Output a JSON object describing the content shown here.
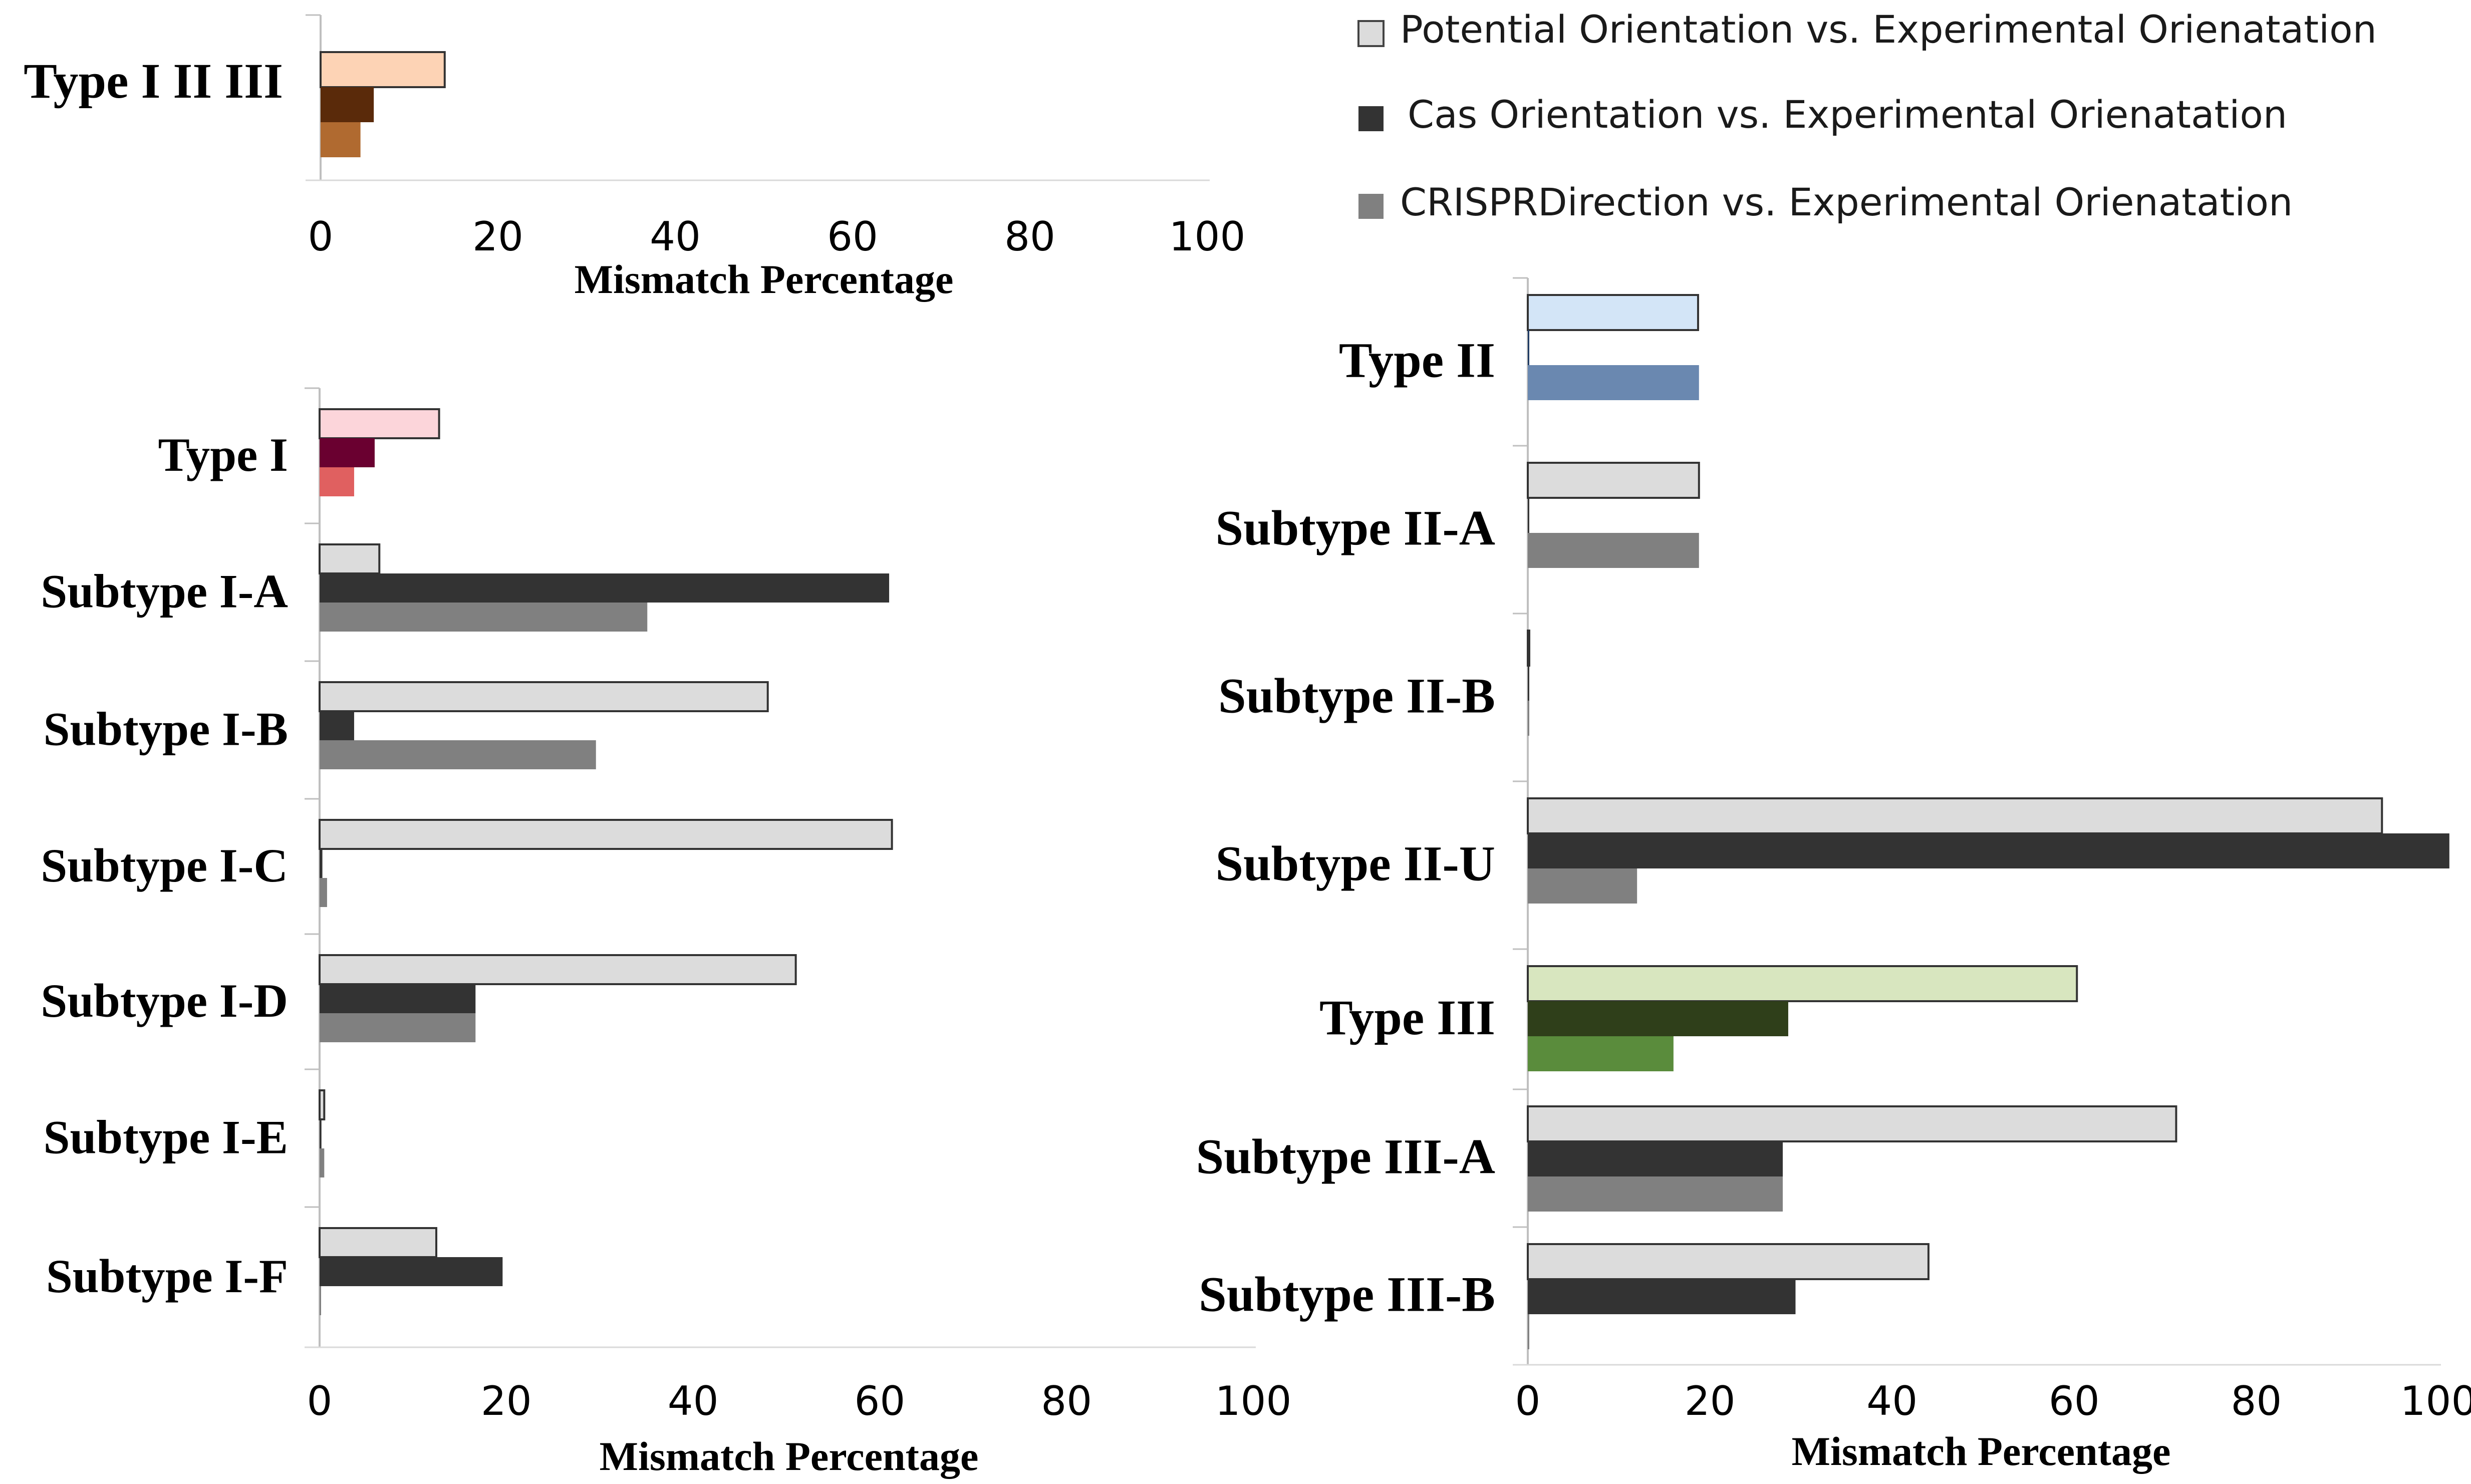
{
  "legend": [
    {
      "label": "Potential Orientation vs. Experimental Orienatation",
      "color": "#dcdcdc"
    },
    {
      "label": "Cas Orientation vs. Experimental Orienatation",
      "color": "#333333"
    },
    {
      "label": "CRISPRDirection vs. Experimental Orienatation",
      "color": "#808080"
    }
  ],
  "chart_data": [
    {
      "id": "top-left",
      "type": "bar",
      "orientation": "horizontal",
      "xlabel": "Mismatch Percentage",
      "xlim": [
        0,
        100
      ],
      "xticks": [
        0,
        20,
        40,
        60,
        80,
        100
      ],
      "categories": [
        "Type I II III"
      ],
      "series": [
        {
          "name": "Potential Orientation vs. Experimental Orienatation",
          "values": [
            14
          ]
        },
        {
          "name": "Cas Orientation vs. Experimental Orienatation",
          "values": [
            6
          ]
        },
        {
          "name": "CRISPRDirection vs. Experimental Orienatation",
          "values": [
            4.5
          ]
        }
      ],
      "colors": [
        [
          "#fdd3b5",
          "#5a2a0a",
          "#b06a30"
        ]
      ]
    },
    {
      "id": "bottom-left",
      "type": "bar",
      "orientation": "horizontal",
      "xlabel": "Mismatch Percentage",
      "xlim": [
        0,
        100
      ],
      "xticks": [
        0,
        20,
        40,
        60,
        80,
        100
      ],
      "categories": [
        "Type I",
        "Subtype I-A",
        "Subtype I-B",
        "Subtype I-C",
        "Subtype I-D",
        "Subtype I-E",
        "Subtype I-F"
      ],
      "series": [
        {
          "name": "Potential Orientation vs. Experimental Orienatation",
          "values": [
            12.8,
            6.4,
            48,
            61.3,
            51,
            0.5,
            12.5
          ]
        },
        {
          "name": "Cas Orientation vs. Experimental Orienatation",
          "values": [
            5.9,
            61,
            3.7,
            0.3,
            16.7,
            0.2,
            19.6
          ]
        },
        {
          "name": "CRISPRDirection vs. Experimental Orienatation",
          "values": [
            3.7,
            35.1,
            29.6,
            0.8,
            16.7,
            0.5,
            0
          ]
        }
      ],
      "colors": [
        [
          "#fcd5da",
          "#6a0030",
          "#e06060"
        ],
        null,
        null,
        null,
        null,
        null,
        null
      ]
    },
    {
      "id": "right",
      "type": "bar",
      "orientation": "horizontal",
      "xlabel": "Mismatch Percentage",
      "xlim": [
        0,
        100
      ],
      "xticks": [
        0,
        20,
        40,
        60,
        80,
        100
      ],
      "categories": [
        "Type II",
        "Subtype II-A",
        "Subtype II-B",
        "Subtype II-U",
        "Type III",
        "Subtype III-A",
        "Subtype III-B"
      ],
      "series": [
        {
          "name": "Potential Orientation vs. Experimental Orienatation",
          "values": [
            18.7,
            18.8,
            0.1,
            93.8,
            60.3,
            71.2,
            44
          ]
        },
        {
          "name": "Cas Orientation vs. Experimental Orienatation",
          "values": [
            0,
            0,
            0,
            101.2,
            28.6,
            28,
            29.4
          ]
        },
        {
          "name": "CRISPRDirection vs. Experimental Orienatation",
          "values": [
            18.8,
            18.8,
            0.1,
            12,
            16,
            28,
            0
          ]
        }
      ],
      "colors": [
        [
          "#d3e5f7",
          "#1f3b63",
          "#6a88b0"
        ],
        null,
        null,
        null,
        [
          "#d8e6bf",
          "#2f3f1a",
          "#5a8c3c"
        ],
        null,
        null
      ]
    }
  ]
}
